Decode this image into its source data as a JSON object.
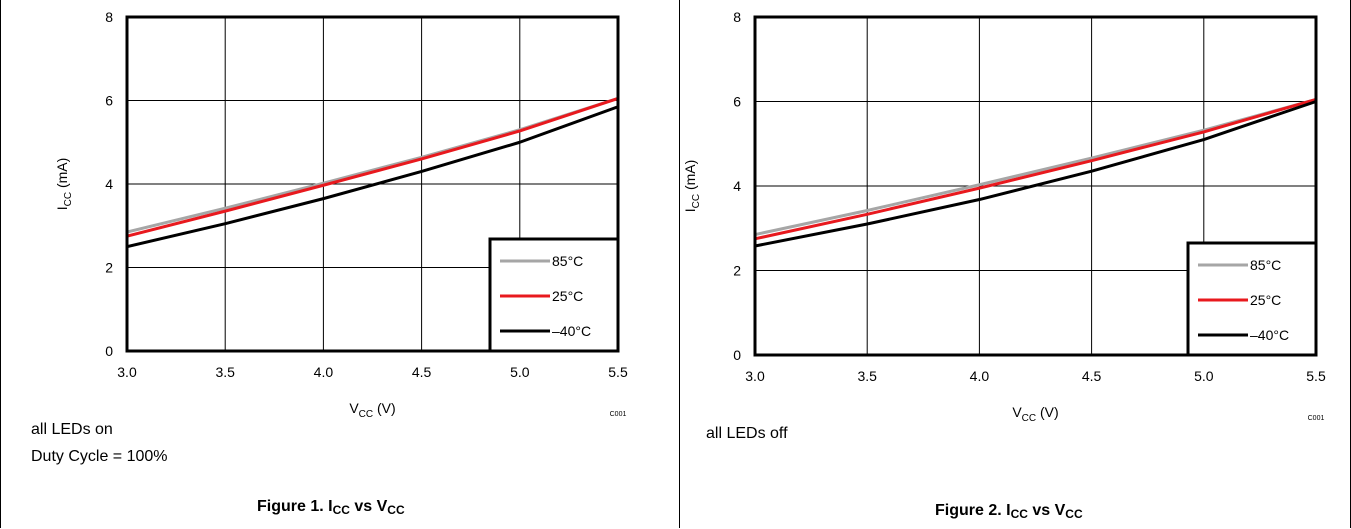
{
  "chart_data": [
    {
      "type": "line",
      "xlabel": "V",
      "xlabel_sub": "CC",
      "xlabel_unit": " (V)",
      "ylabel": "I",
      "ylabel_sub": "CC",
      "ylabel_unit": " (mA)",
      "xlim": [
        3.0,
        5.5
      ],
      "ylim": [
        0,
        8
      ],
      "xticks": [
        "3.0",
        "3.5",
        "4.0",
        "4.5",
        "5.0",
        "5.5"
      ],
      "yticks": [
        "0",
        "2",
        "4",
        "6",
        "8"
      ],
      "grid": true,
      "legend_position": "bottom-right",
      "code": "C001",
      "series": [
        {
          "name": "85°C",
          "color": "#a6a6a6",
          "x": [
            3.0,
            3.5,
            4.0,
            4.5,
            5.0,
            5.5
          ],
          "y": [
            2.85,
            3.42,
            4.02,
            4.64,
            5.3,
            6.05
          ]
        },
        {
          "name": "25°C",
          "color": "#e8191e",
          "x": [
            3.0,
            3.5,
            4.0,
            4.5,
            5.0,
            5.5
          ],
          "y": [
            2.75,
            3.35,
            3.97,
            4.6,
            5.27,
            6.05
          ]
        },
        {
          "name": "–40°C",
          "color": "#000000",
          "x": [
            3.0,
            3.5,
            4.0,
            4.5,
            5.0,
            5.5
          ],
          "y": [
            2.5,
            3.05,
            3.65,
            4.3,
            5.0,
            5.85
          ]
        }
      ]
    },
    {
      "type": "line",
      "xlabel": "V",
      "xlabel_sub": "CC",
      "xlabel_unit": " (V)",
      "ylabel": "I",
      "ylabel_sub": "CC",
      "ylabel_unit": " (mA)",
      "xlim": [
        3.0,
        5.5
      ],
      "ylim": [
        0,
        8
      ],
      "xticks": [
        "3.0",
        "3.5",
        "4.0",
        "4.5",
        "5.0",
        "5.5"
      ],
      "yticks": [
        "0",
        "2",
        "4",
        "6",
        "8"
      ],
      "grid": true,
      "legend_position": "bottom-right",
      "code": "C001",
      "series": [
        {
          "name": "85°C",
          "color": "#a6a6a6",
          "x": [
            3.0,
            3.5,
            4.0,
            4.5,
            5.0,
            5.5
          ],
          "y": [
            2.85,
            3.42,
            4.03,
            4.66,
            5.32,
            6.05
          ]
        },
        {
          "name": "25°C",
          "color": "#e8191e",
          "x": [
            3.0,
            3.5,
            4.0,
            4.5,
            5.0,
            5.5
          ],
          "y": [
            2.75,
            3.33,
            3.95,
            4.6,
            5.28,
            6.05
          ]
        },
        {
          "name": "–40°C",
          "color": "#000000",
          "x": [
            3.0,
            3.5,
            4.0,
            4.5,
            5.0,
            5.5
          ],
          "y": [
            2.58,
            3.1,
            3.68,
            4.35,
            5.1,
            6.0
          ]
        }
      ]
    }
  ],
  "panels": [
    {
      "notes": [
        "all LEDs on",
        "Duty Cycle = 100%"
      ],
      "caption_main": "Figure 1. I",
      "caption_sub1": "CC",
      "caption_vs": " vs V",
      "caption_sub2": "CC"
    },
    {
      "notes": [
        "all LEDs off"
      ],
      "caption_main": "Figure 2. I",
      "caption_sub1": "CC",
      "caption_vs": " vs V",
      "caption_sub2": "CC"
    }
  ]
}
